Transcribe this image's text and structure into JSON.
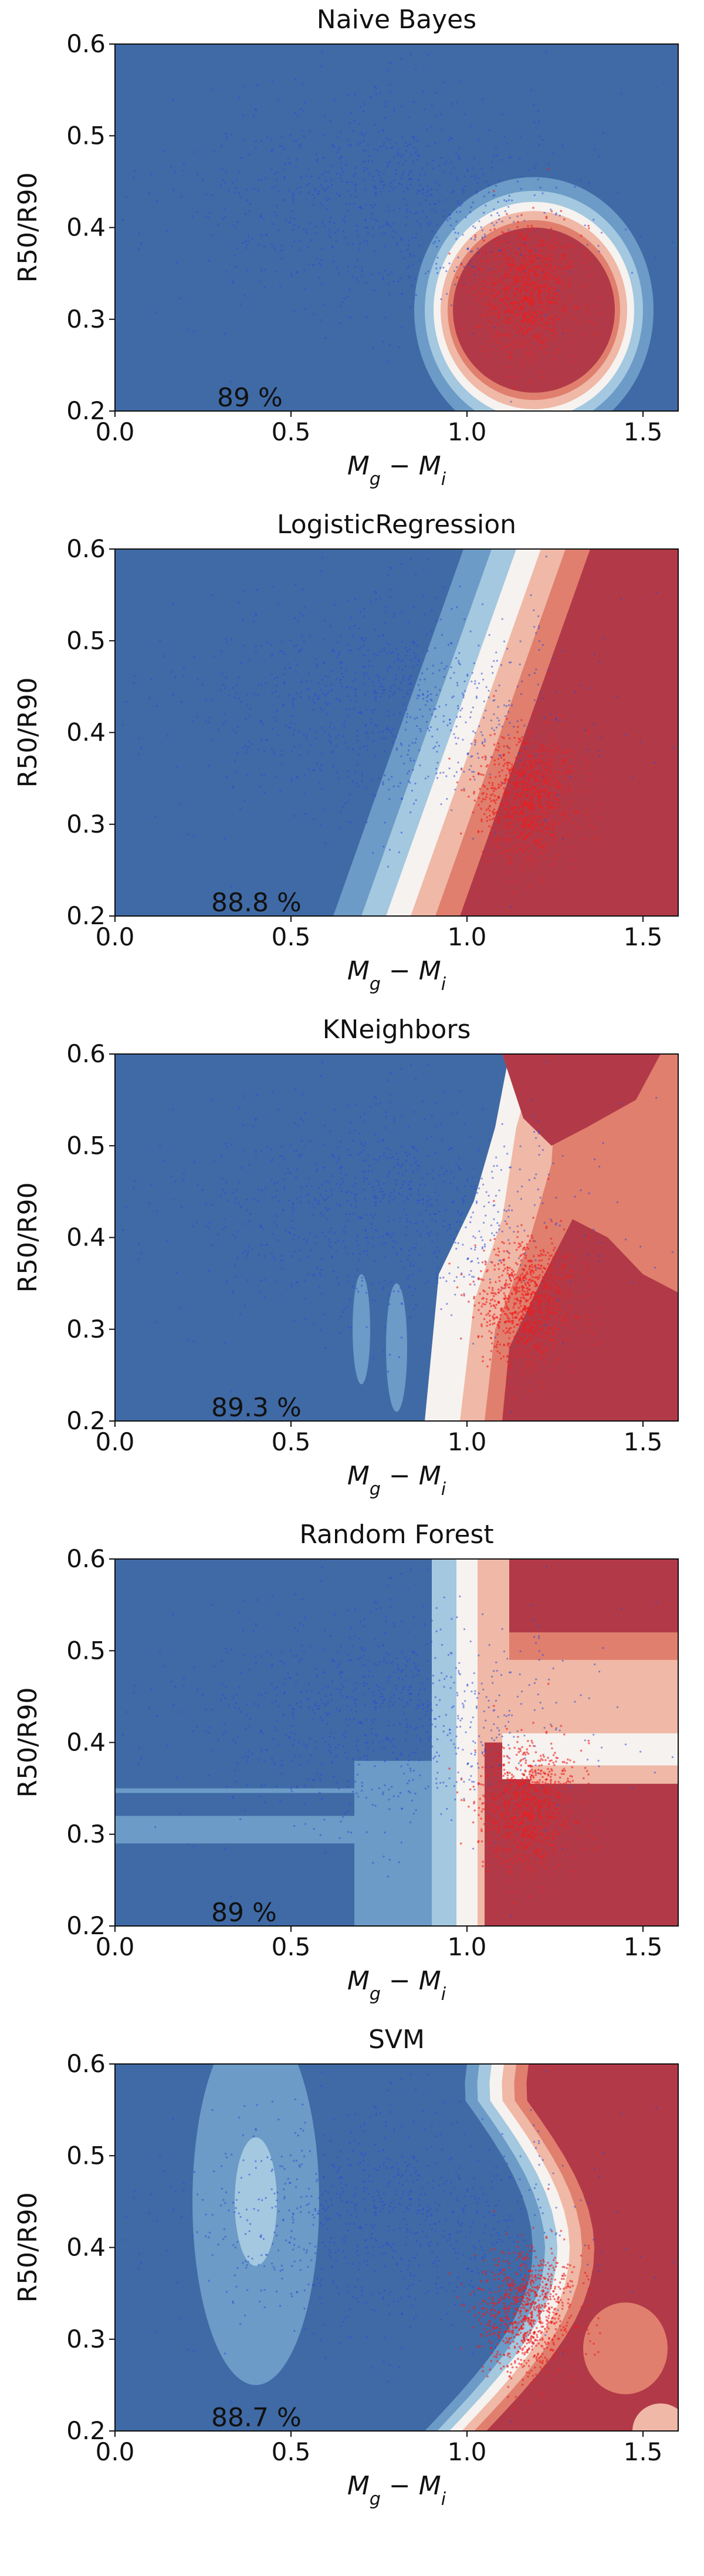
{
  "chart_data": [
    {
      "type": "scatter",
      "title": "Naive Bayes",
      "xlabel": "M_g − M_i",
      "ylabel": "R50/R90",
      "xlim": [
        0.0,
        1.6
      ],
      "ylim": [
        0.2,
        0.6
      ],
      "xticks": [
        "0.0",
        "0.5",
        "1.0",
        "1.5"
      ],
      "yticks": [
        "0.2",
        "0.3",
        "0.4",
        "0.5",
        "0.6"
      ],
      "accuracy": "89 %",
      "boundary": "ellipse"
    },
    {
      "type": "scatter",
      "title": "LogisticRegression",
      "xlabel": "M_g − M_i",
      "ylabel": "R50/R90",
      "xlim": [
        0.0,
        1.6
      ],
      "ylim": [
        0.2,
        0.6
      ],
      "xticks": [
        "0.0",
        "0.5",
        "1.0",
        "1.5"
      ],
      "yticks": [
        "0.2",
        "0.3",
        "0.4",
        "0.5",
        "0.6"
      ],
      "accuracy": "88.8 %",
      "boundary": "linear"
    },
    {
      "type": "scatter",
      "title": "KNeighbors",
      "xlabel": "M_g − M_i",
      "ylabel": "R50/R90",
      "xlim": [
        0.0,
        1.6
      ],
      "ylim": [
        0.2,
        0.6
      ],
      "xticks": [
        "0.0",
        "0.5",
        "1.0",
        "1.5"
      ],
      "yticks": [
        "0.2",
        "0.3",
        "0.4",
        "0.5",
        "0.6"
      ],
      "accuracy": "89.3 %",
      "boundary": "knn"
    },
    {
      "type": "scatter",
      "title": "Random Forest",
      "xlabel": "M_g − M_i",
      "ylabel": "R50/R90",
      "xlim": [
        0.0,
        1.6
      ],
      "ylim": [
        0.2,
        0.6
      ],
      "xticks": [
        "0.0",
        "0.5",
        "1.0",
        "1.5"
      ],
      "yticks": [
        "0.2",
        "0.3",
        "0.4",
        "0.5",
        "0.6"
      ],
      "accuracy": "89 %",
      "boundary": "rf"
    },
    {
      "type": "scatter",
      "title": "SVM",
      "xlabel": "M_g − M_i",
      "ylabel": "R50/R90",
      "xlim": [
        0.0,
        1.6
      ],
      "ylim": [
        0.2,
        0.6
      ],
      "xticks": [
        "0.0",
        "0.5",
        "1.0",
        "1.5"
      ],
      "yticks": [
        "0.2",
        "0.3",
        "0.4",
        "0.5",
        "0.6"
      ],
      "accuracy": "88.7 %",
      "boundary": "svm"
    }
  ],
  "colors": {
    "class_blue_region": "#4b73a8",
    "class_red_region": "#b23a48",
    "blue_points": "#2c49d8",
    "red_points": "#ee1c1c"
  }
}
